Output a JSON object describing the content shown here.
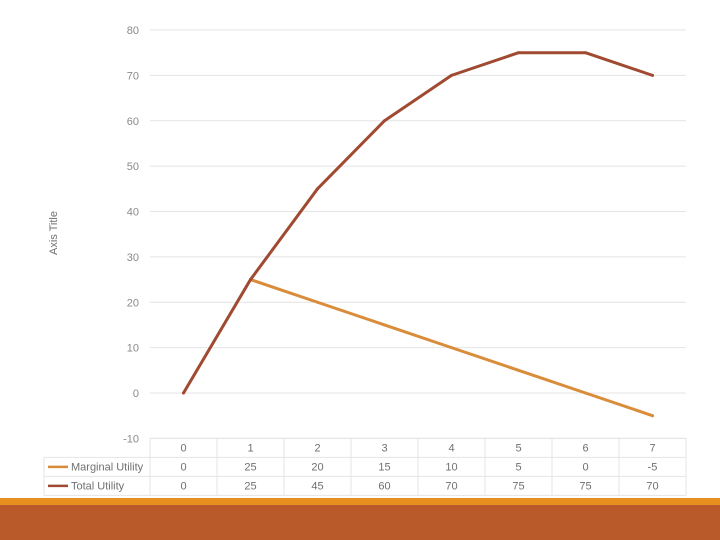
{
  "colors": {
    "total_utility": "#a04a32",
    "marginal_utility": "#d98c3a",
    "grid": "#e4e4e4",
    "footer_stripe": "#e8901f",
    "footer_band": "#b85a2a"
  },
  "chart_data": {
    "type": "line",
    "title": "",
    "ylabel": "Axis Title",
    "ylim": [
      -10,
      80
    ],
    "yticks": [
      "80",
      "70",
      "60",
      "50",
      "40",
      "30",
      "20",
      "10",
      "0",
      "-10"
    ],
    "categories": [
      "0",
      "1",
      "2",
      "3",
      "4",
      "5",
      "6",
      "7"
    ],
    "grid": true,
    "legend": "data-table",
    "series": [
      {
        "name": "Marginal Utility",
        "values": [
          null,
          25,
          20,
          15,
          10,
          5,
          0,
          -5
        ],
        "table_values": [
          "0",
          "25",
          "20",
          "15",
          "10",
          "5",
          "0",
          "-5"
        ],
        "color": "#d98c3a"
      },
      {
        "name": "Total Utility",
        "values": [
          0,
          25,
          45,
          60,
          70,
          75,
          75,
          70
        ],
        "table_values": [
          "0",
          "25",
          "45",
          "60",
          "70",
          "75",
          "75",
          "70"
        ],
        "color": "#a04a32"
      }
    ]
  }
}
